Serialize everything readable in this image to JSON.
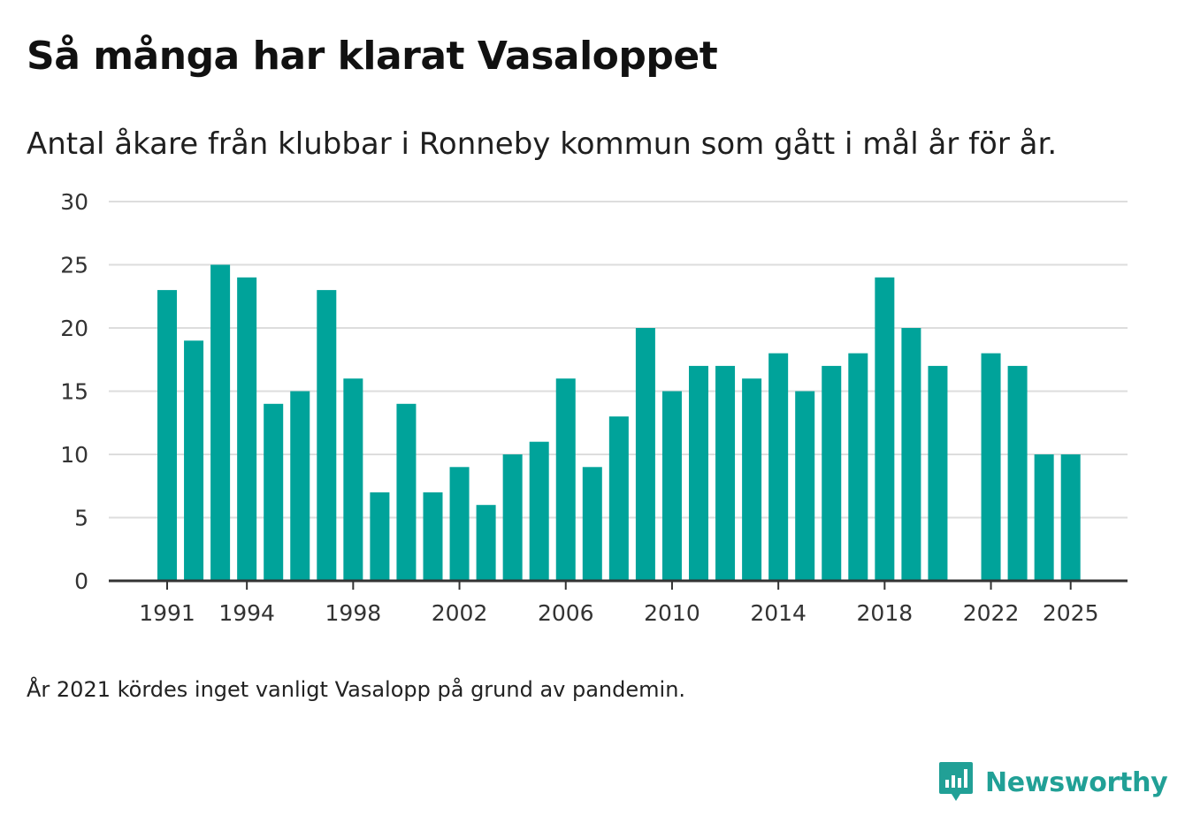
{
  "header": {
    "title": "Så många har klarat Vasaloppet",
    "subtitle": "Antal åkare från klubbar i Ronneby kommun som gått i mål år för år."
  },
  "footnote": "År 2021 kördes inget vanligt Vasalopp på grund av pandemin.",
  "brand": {
    "name": "Newsworthy",
    "icon": "newsworthy-logo-icon",
    "color": "#21a096"
  },
  "colors": {
    "bar": "#00a39a",
    "grid": "#dddddd",
    "axis": "#333333"
  },
  "chart_data": {
    "type": "bar",
    "title": "Så många har klarat Vasaloppet",
    "xlabel": "",
    "ylabel": "",
    "ylim": [
      0,
      30
    ],
    "yticks": [
      0,
      5,
      10,
      15,
      20,
      25,
      30
    ],
    "xticks": [
      1991,
      1994,
      1998,
      2002,
      2006,
      2010,
      2014,
      2018,
      2022,
      2025
    ],
    "grid": true,
    "categories": [
      1991,
      1992,
      1993,
      1994,
      1995,
      1996,
      1997,
      1998,
      1999,
      2000,
      2001,
      2002,
      2003,
      2004,
      2005,
      2006,
      2007,
      2008,
      2009,
      2010,
      2011,
      2012,
      2013,
      2014,
      2015,
      2016,
      2017,
      2018,
      2019,
      2020,
      2021,
      2022,
      2023,
      2024,
      2025
    ],
    "values": [
      23,
      19,
      25,
      24,
      14,
      15,
      23,
      16,
      7,
      14,
      7,
      9,
      6,
      10,
      11,
      16,
      9,
      13,
      20,
      15,
      17,
      17,
      16,
      18,
      15,
      17,
      18,
      24,
      20,
      17,
      null,
      18,
      17,
      10,
      10
    ]
  }
}
